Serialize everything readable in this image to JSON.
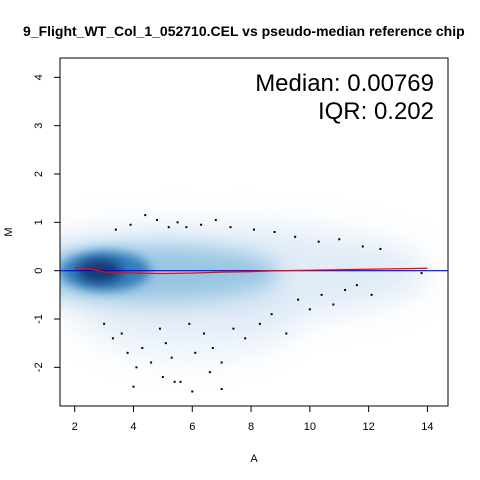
{
  "chart_data": {
    "type": "scatter",
    "title": "9_Flight_WT_Col_1_052710.CEL vs pseudo-median reference chip",
    "xlabel": "A",
    "ylabel": "M",
    "xlim": [
      1.5,
      14.7
    ],
    "ylim": [
      -2.8,
      4.4
    ],
    "xticks": [
      2,
      4,
      6,
      8,
      10,
      12,
      14
    ],
    "yticks": [
      -2,
      -1,
      0,
      1,
      2,
      3,
      4
    ],
    "ytick_labels": [
      "-2",
      "-1",
      "0",
      "1",
      "2",
      "3",
      "4"
    ],
    "xtick_labels": [
      "2",
      "4",
      "6",
      "8",
      "10",
      "12",
      "14"
    ],
    "annotations": {
      "median": "Median: 0.00769",
      "iqr": "IQR: 0.202"
    },
    "reference_line": {
      "y": 0,
      "color": "#0000ff"
    },
    "loess_curve": {
      "color": "#ff0000",
      "x": [
        2.0,
        2.5,
        3.0,
        4.0,
        5.0,
        6.0,
        7.0,
        8.0,
        9.0,
        10.0,
        11.0,
        12.0,
        13.0,
        14.0
      ],
      "y": [
        0.06,
        0.04,
        -0.03,
        -0.05,
        -0.06,
        -0.05,
        -0.03,
        -0.02,
        0.0,
        0.01,
        0.02,
        0.03,
        0.04,
        0.05
      ]
    },
    "outlier_points": {
      "x": [
        3.0,
        3.3,
        3.6,
        3.8,
        4.1,
        4.3,
        4.6,
        4.9,
        5.1,
        5.3,
        5.6,
        5.9,
        6.1,
        6.4,
        6.7,
        7.0,
        7.4,
        7.8,
        8.3,
        8.7,
        9.2,
        9.6,
        10.0,
        10.4,
        10.8,
        11.2,
        11.6,
        12.1,
        3.4,
        3.9,
        4.4,
        4.8,
        5.2,
        5.5,
        5.8,
        6.3,
        6.8,
        7.3,
        8.1,
        8.8,
        9.5,
        10.3,
        11.0,
        11.8,
        12.4,
        13.8,
        4.0,
        5.0,
        6.0,
        7.0,
        5.4,
        6.6
      ],
      "y": [
        -1.1,
        -1.4,
        -1.3,
        -1.7,
        -2.0,
        -1.6,
        -1.9,
        -1.2,
        -1.5,
        -1.8,
        -2.3,
        -1.1,
        -1.7,
        -1.3,
        -1.6,
        -1.9,
        -1.2,
        -1.4,
        -1.1,
        -0.9,
        -1.3,
        -0.6,
        -0.8,
        -0.5,
        -0.7,
        -0.4,
        -0.3,
        -0.5,
        0.85,
        0.95,
        1.15,
        1.05,
        0.9,
        1.0,
        0.9,
        0.95,
        1.05,
        0.9,
        0.85,
        0.8,
        0.7,
        0.6,
        0.65,
        0.5,
        0.45,
        -0.05,
        -2.4,
        -2.2,
        -2.5,
        -2.45,
        -2.3,
        -2.1
      ]
    }
  }
}
